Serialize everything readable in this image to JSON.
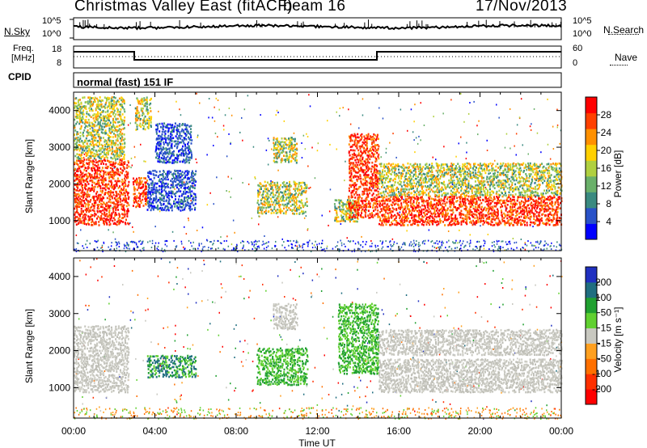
{
  "header": {
    "station_title": "Christmas Valley East (fitACF)",
    "beam": "beam 16",
    "date": "17/Nov/2013"
  },
  "top_panels": {
    "nsky_label": "N.Sky",
    "nsky_ticks": [
      "10^5",
      "10^0"
    ],
    "nsearch_label": "N.Search",
    "nsearch_ticks": [
      "10^5",
      "10^0"
    ],
    "freq_label_line1": "Freq.",
    "freq_label_line2": "[MHz]",
    "freq_ticks": [
      "18",
      "8"
    ],
    "nave_label": "Nave",
    "nave_ticks": [
      "60",
      "0"
    ],
    "cpid_label": "CPID",
    "cpid_value": "normal (fast) 151 IF"
  },
  "colors": {
    "power_scale": [
      "#0000ff",
      "#2952c8",
      "#3a8a80",
      "#6ab06a",
      "#b0d040",
      "#ffd000",
      "#ff9000",
      "#ff4000",
      "#ff0000"
    ],
    "velocity_scale": [
      "#2030c0",
      "#206e80",
      "#20a030",
      "#60d030",
      "#c8c8c0",
      "#ffa020",
      "#ff7000",
      "#ff3000",
      "#ff0000"
    ]
  },
  "chart_data": [
    {
      "type": "heatmap",
      "name": "power",
      "ylabel": "Slant Range [km]",
      "yticks": [
        "1000",
        "2000",
        "3000",
        "4000"
      ],
      "ylim": [
        180,
        4500
      ],
      "xlim": [
        0,
        24
      ],
      "colorbar_label": "Power [dB]",
      "colorbar_ticks": [
        "4",
        "8",
        "12",
        "16",
        "20",
        "24",
        "28"
      ],
      "regions": [
        {
          "t0": 0.0,
          "t1": 2.7,
          "r0": 900,
          "r1": 2700,
          "level": "high"
        },
        {
          "t0": 0.0,
          "t1": 2.5,
          "r0": 2700,
          "r1": 4400,
          "level": "mid"
        },
        {
          "t0": 2.9,
          "t1": 3.6,
          "r0": 1400,
          "r1": 2200,
          "level": "high"
        },
        {
          "t0": 3.0,
          "t1": 3.8,
          "r0": 3500,
          "r1": 4400,
          "level": "mid"
        },
        {
          "t0": 3.6,
          "t1": 6.0,
          "r0": 1300,
          "r1": 2400,
          "level": "low"
        },
        {
          "t0": 4.0,
          "t1": 5.8,
          "r0": 2600,
          "r1": 3700,
          "level": "low"
        },
        {
          "t0": 9.0,
          "t1": 11.5,
          "r0": 1200,
          "r1": 2100,
          "level": "mid"
        },
        {
          "t0": 9.8,
          "t1": 11.0,
          "r0": 2600,
          "r1": 3300,
          "level": "mid"
        },
        {
          "t0": 12.8,
          "t1": 14.0,
          "r0": 1000,
          "r1": 1600,
          "level": "mid"
        },
        {
          "t0": 13.5,
          "t1": 15.0,
          "r0": 1100,
          "r1": 3400,
          "level": "high"
        },
        {
          "t0": 15.0,
          "t1": 24.0,
          "r0": 900,
          "r1": 1700,
          "level": "high"
        },
        {
          "t0": 15.0,
          "t1": 24.0,
          "r0": 1700,
          "r1": 2600,
          "level": "mid"
        }
      ]
    },
    {
      "type": "heatmap",
      "name": "velocity",
      "ylabel": "Slant Range [km]",
      "yticks": [
        "1000",
        "2000",
        "3000",
        "4000"
      ],
      "ylim": [
        180,
        4500
      ],
      "xlim": [
        0,
        24
      ],
      "xlabel": "Time UT",
      "xticks": [
        "00:00",
        "04:00",
        "08:00",
        "12:00",
        "16:00",
        "20:00",
        "00:00"
      ],
      "colorbar_label": "Velocity [m s⁻¹]",
      "colorbar_ticks": [
        "200",
        "100",
        "50",
        "15",
        "-15",
        "-50",
        "-100",
        "-200"
      ],
      "regions": [
        {
          "t0": 0.0,
          "t1": 2.7,
          "r0": 900,
          "r1": 2700,
          "level": "ground"
        },
        {
          "t0": 3.6,
          "t1": 6.0,
          "r0": 1300,
          "r1": 1900,
          "level": "pos_small"
        },
        {
          "t0": 9.0,
          "t1": 11.5,
          "r0": 1100,
          "r1": 2100,
          "level": "pos_mid"
        },
        {
          "t0": 9.8,
          "t1": 11.0,
          "r0": 2600,
          "r1": 3300,
          "level": "ground"
        },
        {
          "t0": 13.0,
          "t1": 15.0,
          "r0": 1400,
          "r1": 3300,
          "level": "pos_mid"
        },
        {
          "t0": 15.0,
          "t1": 24.0,
          "r0": 900,
          "r1": 1800,
          "level": "ground"
        },
        {
          "t0": 15.0,
          "t1": 24.0,
          "r0": 1900,
          "r1": 2600,
          "level": "ground"
        }
      ]
    }
  ]
}
